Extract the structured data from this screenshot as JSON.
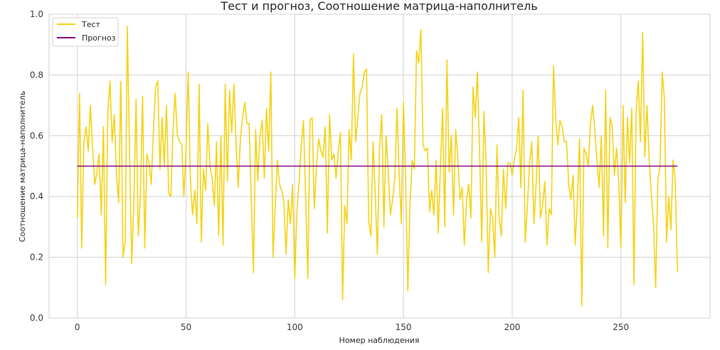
{
  "chart_data": {
    "type": "line",
    "title": "Тест и прогноз, Соотношение матрица-наполнитель",
    "xlabel": "Номер наблюдения",
    "ylabel": "Соотношение матрица-наполнитель",
    "xlim": [
      -13,
      291
    ],
    "ylim": [
      0.0,
      1.0
    ],
    "x_ticks": [
      0,
      50,
      100,
      150,
      200,
      250
    ],
    "y_ticks": [
      0.0,
      0.2,
      0.4,
      0.6,
      0.8,
      1.0
    ],
    "grid": true,
    "legend_position": "top-left",
    "series": [
      {
        "name": "Тест",
        "color": "#f5d10f",
        "values": [
          0.33,
          0.74,
          0.23,
          0.58,
          0.63,
          0.55,
          0.7,
          0.56,
          0.44,
          0.48,
          0.54,
          0.34,
          0.63,
          0.11,
          0.68,
          0.78,
          0.58,
          0.67,
          0.47,
          0.38,
          0.78,
          0.2,
          0.25,
          0.96,
          0.55,
          0.18,
          0.38,
          0.72,
          0.27,
          0.4,
          0.73,
          0.23,
          0.54,
          0.51,
          0.44,
          0.62,
          0.76,
          0.78,
          0.49,
          0.66,
          0.5,
          0.7,
          0.41,
          0.4,
          0.62,
          0.74,
          0.6,
          0.58,
          0.57,
          0.4,
          0.56,
          0.81,
          0.45,
          0.34,
          0.42,
          0.31,
          0.77,
          0.25,
          0.49,
          0.42,
          0.64,
          0.5,
          0.46,
          0.37,
          0.58,
          0.27,
          0.6,
          0.24,
          0.77,
          0.45,
          0.75,
          0.61,
          0.77,
          0.57,
          0.43,
          0.59,
          0.66,
          0.71,
          0.64,
          0.64,
          0.39,
          0.15,
          0.62,
          0.45,
          0.6,
          0.65,
          0.46,
          0.69,
          0.55,
          0.81,
          0.2,
          0.37,
          0.52,
          0.44,
          0.42,
          0.38,
          0.21,
          0.39,
          0.31,
          0.44,
          0.13,
          0.35,
          0.45,
          0.57,
          0.65,
          0.4,
          0.13,
          0.65,
          0.66,
          0.36,
          0.5,
          0.59,
          0.55,
          0.53,
          0.63,
          0.28,
          0.67,
          0.52,
          0.54,
          0.46,
          0.55,
          0.61,
          0.06,
          0.37,
          0.31,
          0.62,
          0.52,
          0.87,
          0.58,
          0.66,
          0.74,
          0.76,
          0.81,
          0.82,
          0.32,
          0.27,
          0.58,
          0.41,
          0.21,
          0.56,
          0.67,
          0.3,
          0.6,
          0.48,
          0.34,
          0.39,
          0.46,
          0.69,
          0.48,
          0.31,
          0.71,
          0.46,
          0.09,
          0.38,
          0.52,
          0.49,
          0.88,
          0.84,
          0.95,
          0.57,
          0.55,
          0.56,
          0.35,
          0.42,
          0.34,
          0.52,
          0.28,
          0.5,
          0.69,
          0.3,
          0.85,
          0.48,
          0.6,
          0.34,
          0.62,
          0.53,
          0.39,
          0.43,
          0.24,
          0.39,
          0.44,
          0.33,
          0.76,
          0.66,
          0.81,
          0.55,
          0.25,
          0.68,
          0.51,
          0.15,
          0.36,
          0.33,
          0.2,
          0.57,
          0.33,
          0.27,
          0.49,
          0.36,
          0.51,
          0.51,
          0.47,
          0.52,
          0.56,
          0.66,
          0.43,
          0.75,
          0.25,
          0.37,
          0.51,
          0.58,
          0.31,
          0.44,
          0.6,
          0.33,
          0.37,
          0.45,
          0.24,
          0.36,
          0.34,
          0.83,
          0.66,
          0.57,
          0.65,
          0.63,
          0.58,
          0.58,
          0.44,
          0.39,
          0.47,
          0.24,
          0.39,
          0.59,
          0.04,
          0.56,
          0.54,
          0.5,
          0.64,
          0.7,
          0.62,
          0.52,
          0.43,
          0.6,
          0.27,
          0.75,
          0.23,
          0.66,
          0.63,
          0.47,
          0.56,
          0.45,
          0.23,
          0.7,
          0.38,
          0.66,
          0.51,
          0.69,
          0.11,
          0.68,
          0.78,
          0.58,
          0.94,
          0.53,
          0.7,
          0.52,
          0.41,
          0.31,
          0.1,
          0.45,
          0.5,
          0.81,
          0.72,
          0.25,
          0.4,
          0.29,
          0.52,
          0.45,
          0.15
        ]
      },
      {
        "name": "Прогноз",
        "color": "#800080",
        "values": [
          0.5,
          0.5
        ],
        "x": [
          0,
          276
        ]
      }
    ]
  }
}
